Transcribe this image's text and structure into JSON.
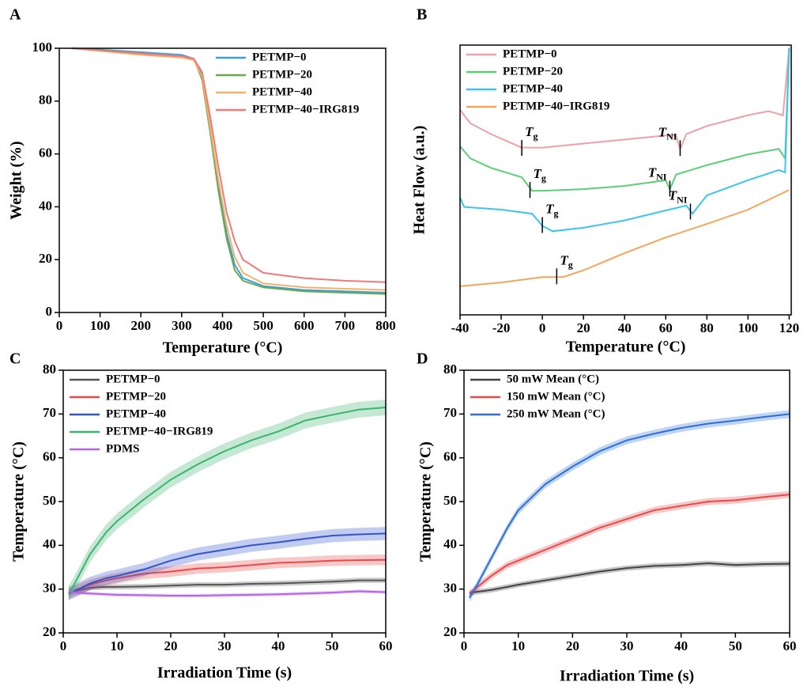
{
  "chart_data": [
    {
      "type": "line",
      "panel": "A",
      "x_label": "Temperature (°C)",
      "y_label": "Weight (%)",
      "xlim": [
        0,
        800
      ],
      "ylim": [
        0,
        100
      ],
      "xticks": [
        0,
        100,
        200,
        300,
        400,
        500,
        600,
        700,
        800
      ],
      "yticks": [
        0,
        20,
        40,
        60,
        80,
        100
      ],
      "legend": "upper right",
      "x": [
        30,
        100,
        200,
        300,
        330,
        350,
        370,
        390,
        410,
        430,
        450,
        500,
        600,
        700,
        800
      ],
      "series": [
        {
          "name": "PETMP−0",
          "color": "#3aa0dc",
          "values": [
            100,
            99.5,
            98.5,
            97.5,
            96,
            90,
            70,
            48,
            30,
            18,
            13,
            10,
            8.5,
            8,
            7.5
          ]
        },
        {
          "name": "PETMP−20",
          "color": "#6aa84f",
          "values": [
            100,
            99.3,
            98,
            97,
            96,
            88,
            68,
            46,
            28,
            16,
            12,
            9.5,
            8,
            7.5,
            7
          ]
        },
        {
          "name": "PETMP−40",
          "color": "#f5b16a",
          "values": [
            100,
            99,
            97.5,
            96.5,
            95.5,
            89,
            70,
            50,
            33,
            21,
            15,
            11,
            9.5,
            9,
            8.5
          ]
        },
        {
          "name": "PETMP−40−IRG819",
          "color": "#ec7b7b",
          "values": [
            100,
            99.2,
            98,
            97,
            96,
            91,
            74,
            55,
            38,
            27,
            20,
            15,
            13,
            12,
            11.5
          ]
        }
      ]
    },
    {
      "type": "line",
      "panel": "B",
      "x_label": "Temperature (°C)",
      "y_label": "Heat Flow (a.u.)",
      "xlim": [
        -40,
        121
      ],
      "ylim": [
        0,
        100
      ],
      "xticks": [
        -40,
        -20,
        0,
        20,
        40,
        60,
        80,
        100,
        120
      ],
      "legend": "upper left",
      "series": [
        {
          "name": "PETMP−0",
          "color": "#eea0a8",
          "x": [
            -40,
            -35,
            -25,
            -10,
            0,
            20,
            40,
            60,
            65,
            67,
            70,
            80,
            100,
            110,
            117,
            120
          ],
          "values": [
            76,
            71,
            67,
            62,
            62,
            63.5,
            65,
            66.5,
            66.5,
            61.5,
            67,
            70,
            74,
            75.5,
            74,
            99
          ]
        },
        {
          "name": "PETMP−20",
          "color": "#5dcf7a",
          "x": [
            -40,
            -35,
            -25,
            -10,
            -5,
            0,
            20,
            40,
            60,
            62,
            65,
            80,
            100,
            115,
            118,
            120
          ],
          "values": [
            62.5,
            58,
            54.5,
            51,
            46,
            46,
            46.6,
            47.8,
            49.9,
            46.5,
            52,
            55.5,
            59.5,
            61.5,
            58,
            99
          ]
        },
        {
          "name": "PETMP−40",
          "color": "#3cc4f0",
          "x": [
            -40,
            -38,
            -20,
            -5,
            0,
            5,
            20,
            40,
            60,
            70,
            73,
            80,
            100,
            115,
            118,
            120
          ],
          "values": [
            43.5,
            40,
            39,
            37.5,
            33,
            31,
            32.3,
            35,
            38.7,
            40.5,
            37.5,
            44.3,
            49.9,
            53.7,
            52.8,
            99
          ]
        },
        {
          "name": "PETMP−40−IRG819",
          "color": "#f5a55a",
          "x": [
            -40,
            -20,
            0,
            10,
            20,
            40,
            60,
            80,
            100,
            120
          ],
          "values": [
            10.6,
            12,
            14,
            14,
            16.5,
            22.9,
            28.7,
            33.7,
            39,
            46.3
          ]
        }
      ],
      "annotations": [
        {
          "text": "T",
          "sub": "g",
          "x": -10,
          "y": 61.6
        },
        {
          "text": "T",
          "sub": "NI",
          "x": 67,
          "y": 61.5
        },
        {
          "text": "T",
          "sub": "g",
          "x": -6,
          "y": 46
        },
        {
          "text": "T",
          "sub": "NI",
          "x": 62,
          "y": 46.5
        },
        {
          "text": "T",
          "sub": "g",
          "x": 0,
          "y": 33
        },
        {
          "text": "T",
          "sub": "NI",
          "x": 72,
          "y": 38
        },
        {
          "text": "T",
          "sub": "g",
          "x": 7,
          "y": 14
        }
      ]
    },
    {
      "type": "line",
      "panel": "C",
      "x_label": "Irradiation Time (s)",
      "y_label": "Temperature (°C)",
      "xlim": [
        0,
        60
      ],
      "ylim": [
        20,
        80
      ],
      "xticks": [
        0,
        10,
        20,
        30,
        40,
        50,
        60
      ],
      "yticks": [
        20,
        30,
        40,
        50,
        60,
        70,
        80
      ],
      "legend": "upper left",
      "x": [
        1,
        2,
        5,
        8,
        10,
        15,
        20,
        25,
        30,
        35,
        40,
        45,
        50,
        55,
        60
      ],
      "series": [
        {
          "name": "PETMP−0",
          "color": "#555555",
          "error": 0.6,
          "values": [
            29,
            29.5,
            30.3,
            30.5,
            30.5,
            30.6,
            30.8,
            31,
            31,
            31.2,
            31.3,
            31.5,
            31.7,
            32,
            32
          ]
        },
        {
          "name": "PETMP−20",
          "color": "#e84a4a",
          "error": 1.2,
          "values": [
            29,
            29.5,
            31,
            32,
            32.5,
            33.5,
            34,
            34.7,
            35,
            35.5,
            36,
            36.2,
            36.5,
            36.6,
            36.7
          ]
        },
        {
          "name": "PETMP−40",
          "color": "#3355cc",
          "error": 1.5,
          "values": [
            29,
            29.5,
            31.3,
            32.5,
            33,
            34.5,
            36.5,
            38,
            39,
            40,
            40.7,
            41.5,
            42.2,
            42.5,
            42.7
          ]
        },
        {
          "name": "PETMP−40−IRG819",
          "color": "#3cb46e",
          "error": 1.8,
          "values": [
            29,
            31,
            38,
            43,
            45.5,
            50.5,
            55,
            58.5,
            61.5,
            64,
            66,
            68.5,
            69.8,
            71,
            71.5
          ]
        },
        {
          "name": "PDMS",
          "color": "#b565e0",
          "error": 0.4,
          "values": [
            29.5,
            29.2,
            29,
            28.8,
            28.7,
            28.6,
            28.5,
            28.5,
            28.6,
            28.7,
            28.8,
            29,
            29.2,
            29.5,
            29.3
          ]
        }
      ]
    },
    {
      "type": "line",
      "panel": "D",
      "x_label": "Irradiation Time (s)",
      "y_label": "Temperature (°C)",
      "xlim": [
        0,
        60
      ],
      "ylim": [
        20,
        80
      ],
      "xticks": [
        0,
        10,
        20,
        30,
        40,
        50,
        60
      ],
      "yticks": [
        20,
        30,
        40,
        50,
        60,
        70,
        80
      ],
      "legend": "upper left",
      "x": [
        1,
        2,
        5,
        8,
        10,
        15,
        20,
        25,
        30,
        35,
        40,
        45,
        50,
        55,
        60
      ],
      "series": [
        {
          "name": "50 mW Mean (°C)",
          "color": "#444444",
          "error": 0.6,
          "values": [
            29,
            29.3,
            29.8,
            30.5,
            31,
            32,
            33,
            34,
            34.8,
            35.3,
            35.5,
            35.9,
            35.5,
            35.7,
            35.8
          ]
        },
        {
          "name": "150 mW Mean (°C)",
          "color": "#e84a4a",
          "error": 0.8,
          "values": [
            29,
            30,
            33,
            35.5,
            36.5,
            39,
            41.5,
            44,
            46,
            48,
            49,
            50,
            50.3,
            51,
            51.6
          ]
        },
        {
          "name": "250 mW Mean (°C)",
          "color": "#2f6fd8",
          "error": 0.9,
          "values": [
            28,
            30,
            37,
            44,
            48,
            54,
            58,
            61.5,
            64,
            65.5,
            66.8,
            67.8,
            68.5,
            69.3,
            70
          ]
        }
      ]
    }
  ]
}
